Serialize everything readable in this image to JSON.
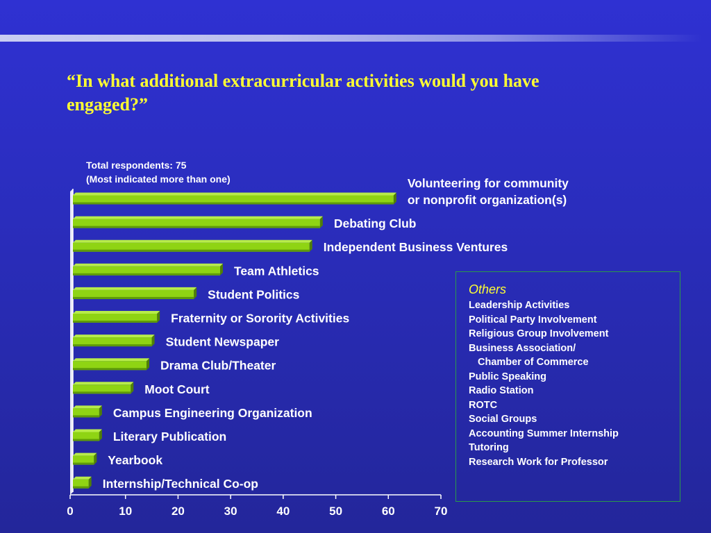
{
  "title": "“In what additional extracurricular activities would you have engaged?”",
  "respondents_note": {
    "line1": "Total respondents: 75",
    "line2": "(Most indicated more than one)"
  },
  "chart_data": {
    "type": "bar",
    "orientation": "horizontal",
    "categories": [
      "Volunteering for community or nonprofit organization(s)",
      "Debating Club",
      "Independent Business Ventures",
      "Team Athletics",
      "Student Politics",
      "Fraternity or Sorority Activities",
      "Student Newspaper",
      "Drama Club/Theater",
      "Moot Court",
      "Campus Engineering Organization",
      "Literary Publication",
      "Yearbook",
      "Internship/Technical Co-op"
    ],
    "label_lines": [
      [
        "Volunteering for community",
        "or nonprofit organization(s)"
      ],
      [
        "Debating Club"
      ],
      [
        "Independent Business Ventures"
      ],
      [
        "Team Athletics"
      ],
      [
        "Student Politics"
      ],
      [
        "Fraternity or Sorority Activities"
      ],
      [
        "Student Newspaper"
      ],
      [
        "Drama Club/Theater"
      ],
      [
        "Moot Court"
      ],
      [
        "Campus Engineering Organization"
      ],
      [
        "Literary Publication"
      ],
      [
        "Yearbook"
      ],
      [
        "Internship/Technical Co-op"
      ]
    ],
    "values": [
      61,
      47,
      45,
      28,
      23,
      16,
      15,
      14,
      11,
      5,
      5,
      4,
      3
    ],
    "x_ticks": [
      0,
      10,
      20,
      30,
      40,
      50,
      60,
      70
    ],
    "xlim": [
      0,
      70
    ],
    "xlabel": "",
    "ylabel": "",
    "grid": false,
    "colors": {
      "bar_face": "#8fd413",
      "bar_top": "#b8ec4a",
      "bar_bottom": "#5e9a0a",
      "bar_side": "#4f7f07",
      "axis": "#ffffff",
      "label": "#ffffff"
    }
  },
  "others": {
    "heading": "Others",
    "items": [
      "Leadership Activities",
      "Political Party Involvement",
      "Religious Group Involvement",
      "Business Association/",
      "Chamber of Commerce",
      "Public Speaking",
      "Radio Station",
      "ROTC",
      "Social Groups",
      "Accounting Summer Internship",
      "Tutoring",
      "Research Work for Professor"
    ],
    "colors": {
      "heading": "#ffff33",
      "border": "#2a9a4a"
    }
  },
  "colors": {
    "background": "#2b2ec4",
    "title": "#ffff33",
    "text": "#ffffff"
  }
}
